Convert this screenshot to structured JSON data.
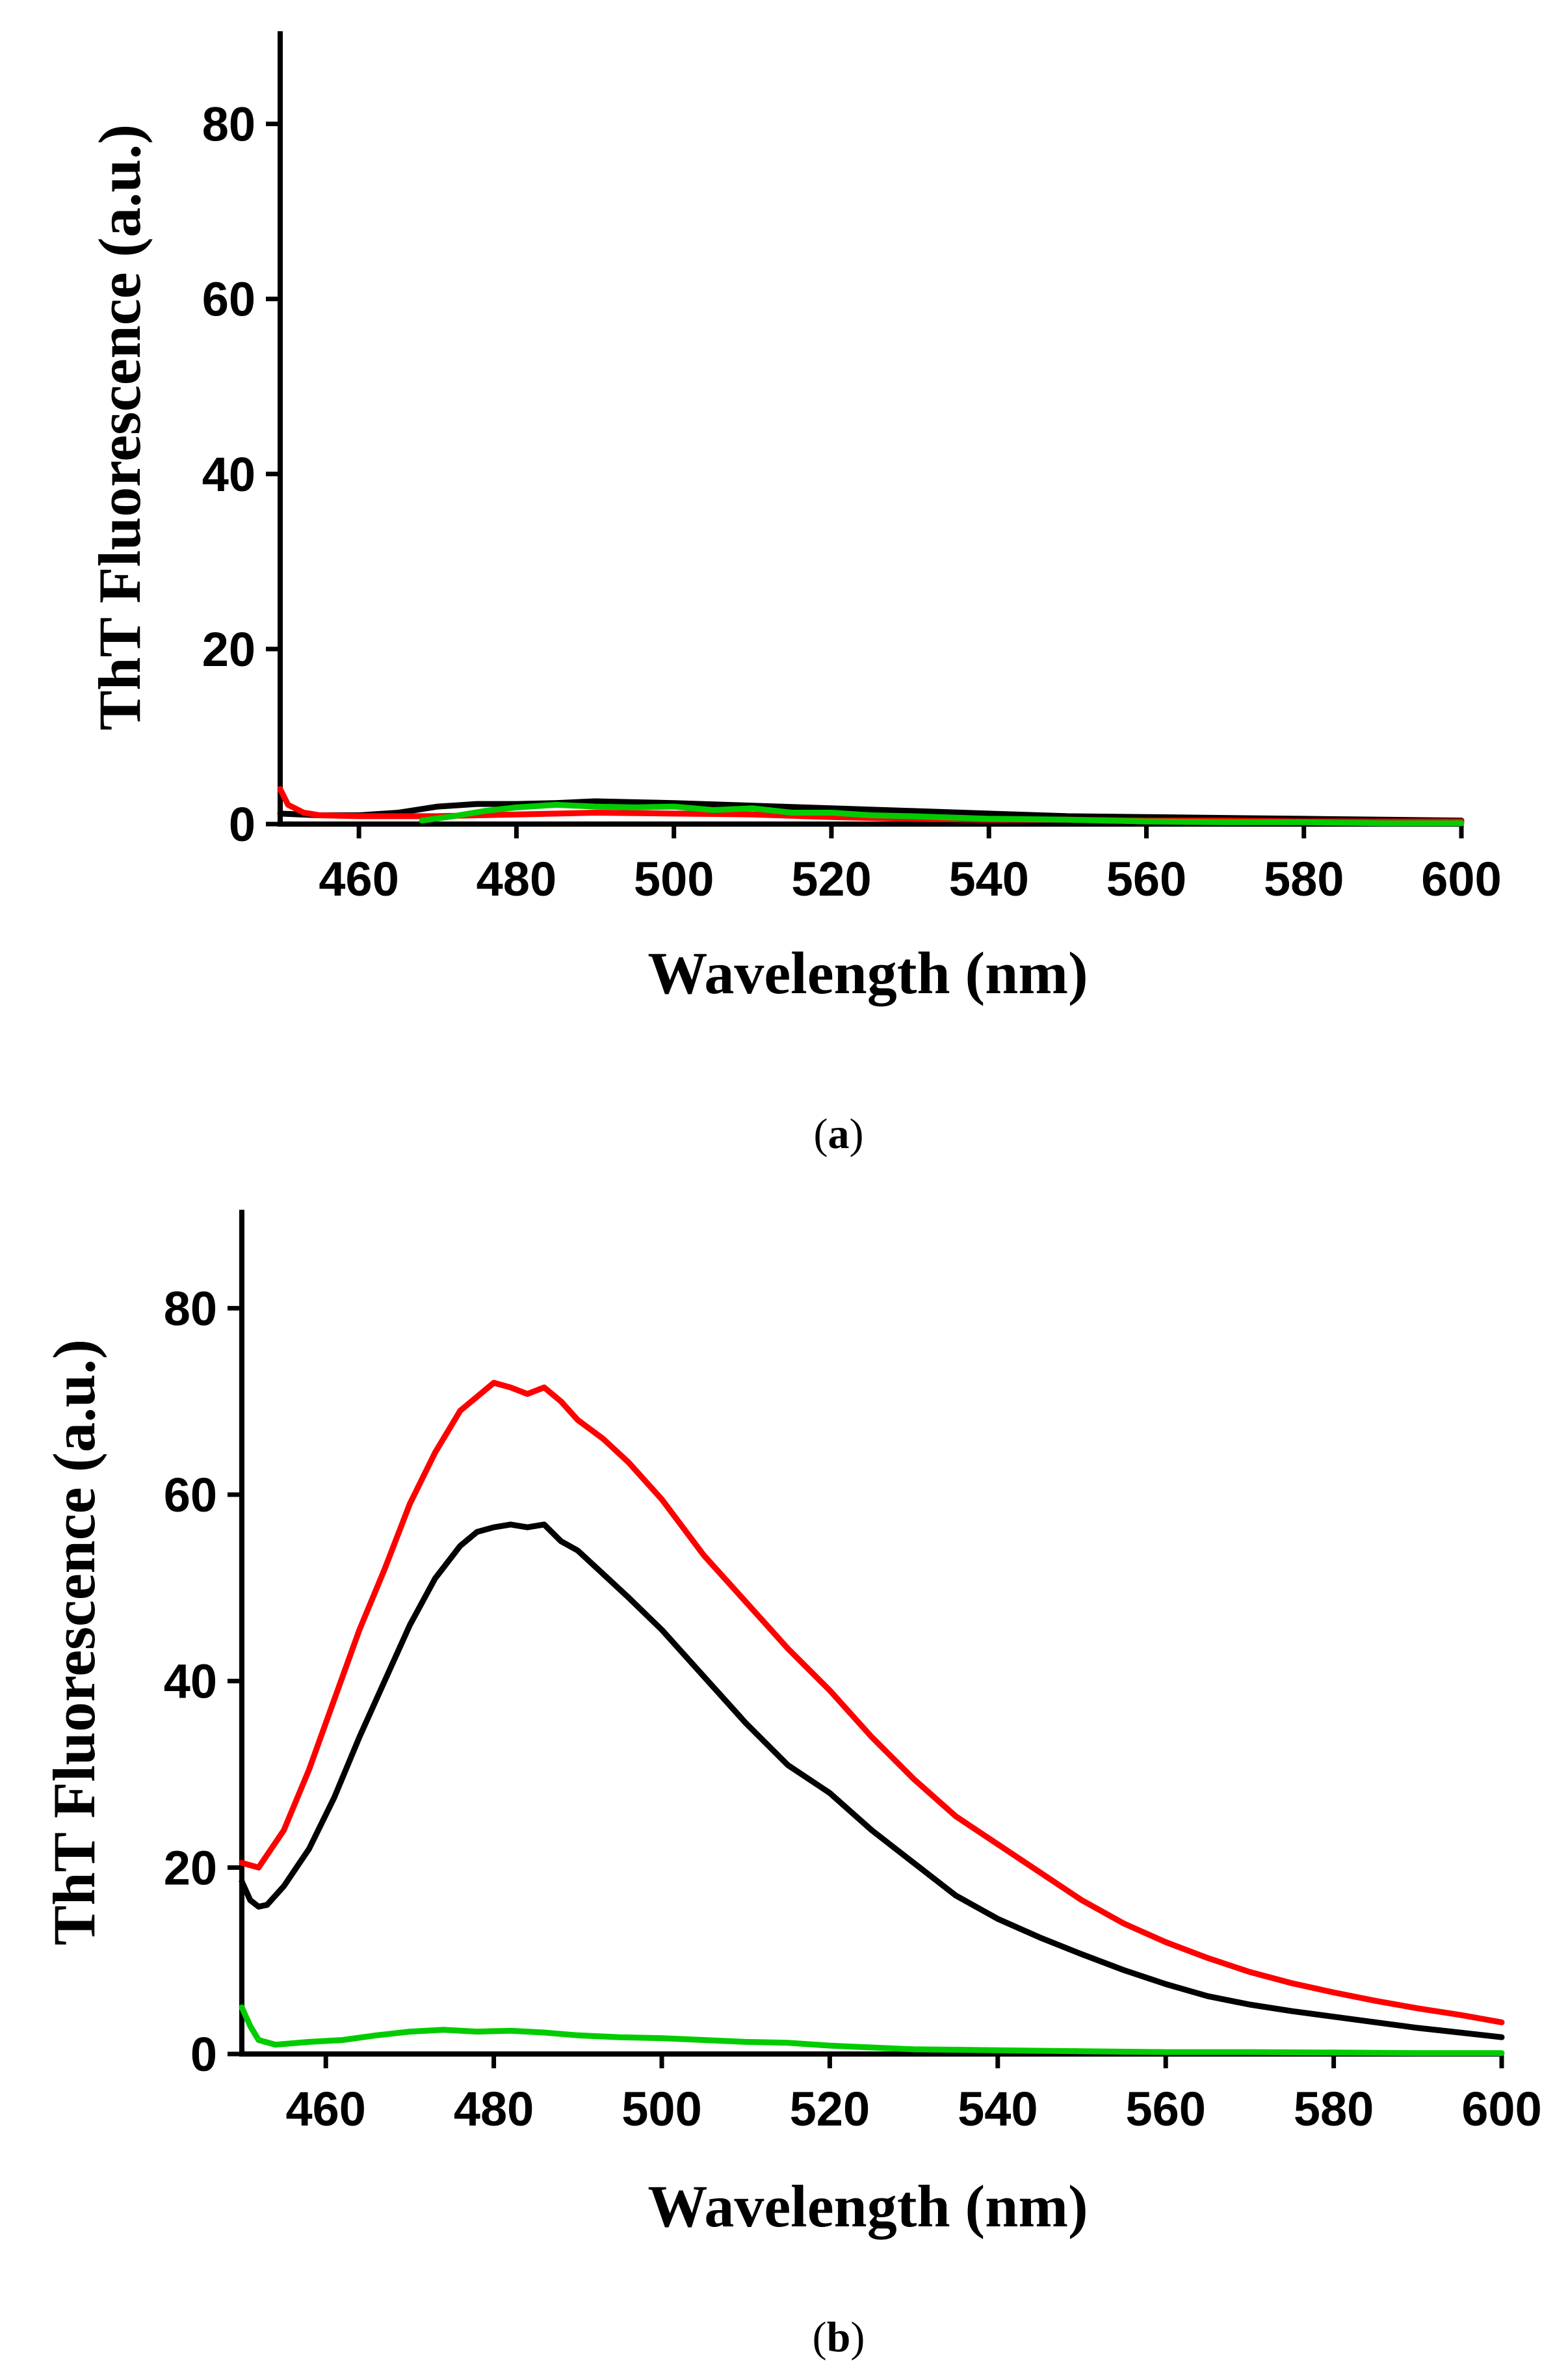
{
  "chart_data": [
    {
      "type": "line",
      "caption_open": "(",
      "caption_letter": "a",
      "caption_close": ")",
      "xlabel": "Wavelength (nm)",
      "ylabel": "ThT Fluorescence (a.u.)",
      "xlim": [
        450,
        600
      ],
      "ylim": [
        0,
        90
      ],
      "xticks": [
        460,
        480,
        500,
        520,
        540,
        560,
        580,
        600
      ],
      "yticks": [
        0,
        20,
        40,
        60,
        80
      ],
      "series": [
        {
          "name": "black",
          "color": "#000000",
          "x": [
            450,
            455,
            460,
            465,
            470,
            475,
            480,
            485,
            490,
            495,
            500,
            510,
            520,
            530,
            540,
            550,
            560,
            570,
            580,
            590,
            600
          ],
          "y": [
            1.2,
            1.0,
            1.0,
            1.3,
            2.0,
            2.3,
            2.3,
            2.4,
            2.6,
            2.5,
            2.4,
            2.1,
            1.8,
            1.5,
            1.2,
            0.9,
            0.8,
            0.7,
            0.6,
            0.5,
            0.4
          ]
        },
        {
          "name": "red",
          "color": "#ff0000",
          "x": [
            450,
            451,
            453,
            455,
            460,
            470,
            480,
            490,
            500,
            510,
            520,
            530,
            540,
            550,
            560,
            570,
            580,
            590,
            600
          ],
          "y": [
            4.0,
            2.2,
            1.3,
            1.0,
            0.9,
            0.9,
            1.1,
            1.3,
            1.2,
            1.1,
            0.8,
            0.6,
            0.5,
            0.5,
            0.4,
            0.4,
            0.3,
            0.3,
            0.3
          ]
        },
        {
          "name": "green",
          "color": "#00cc00",
          "x": [
            468,
            472,
            476,
            480,
            485,
            490,
            495,
            500,
            505,
            510,
            515,
            520,
            525,
            530,
            540,
            550,
            560,
            570,
            580,
            590,
            600
          ],
          "y": [
            0.4,
            0.9,
            1.5,
            1.9,
            2.2,
            2.0,
            1.9,
            2.0,
            1.6,
            1.8,
            1.3,
            1.3,
            1.0,
            0.9,
            0.6,
            0.5,
            0.3,
            0.2,
            0.2,
            0.1,
            0.1
          ]
        }
      ]
    },
    {
      "type": "line",
      "caption_open": "(",
      "caption_letter": "b",
      "caption_close": ")",
      "xlabel": "Wavelength (nm)",
      "ylabel": "ThT Fluorescence (a.u.)",
      "xlim": [
        450,
        600
      ],
      "ylim": [
        0,
        90
      ],
      "xticks": [
        460,
        480,
        500,
        520,
        540,
        560,
        580,
        600
      ],
      "yticks": [
        0,
        20,
        40,
        60,
        80
      ],
      "series": [
        {
          "name": "black",
          "color": "#000000",
          "x": [
            450,
            451,
            452,
            453,
            455,
            458,
            461,
            464,
            467,
            470,
            473,
            476,
            478,
            480,
            482,
            484,
            486,
            488,
            490,
            493,
            496,
            500,
            505,
            510,
            515,
            520,
            525,
            530,
            535,
            540,
            545,
            550,
            555,
            560,
            565,
            570,
            575,
            580,
            585,
            590,
            595,
            600
          ],
          "y": [
            18.5,
            16.5,
            15.8,
            16.0,
            18.0,
            22.0,
            27.5,
            34.0,
            40.0,
            46.0,
            51.0,
            54.5,
            56.0,
            56.5,
            56.8,
            56.5,
            56.8,
            55.0,
            54.0,
            51.5,
            49.0,
            45.5,
            40.5,
            35.5,
            31.0,
            28.0,
            24.0,
            20.5,
            17.0,
            14.5,
            12.5,
            10.7,
            9.0,
            7.5,
            6.2,
            5.3,
            4.6,
            4.0,
            3.4,
            2.8,
            2.3,
            1.8
          ]
        },
        {
          "name": "red",
          "color": "#ff0000",
          "x": [
            450,
            452,
            455,
            458,
            461,
            464,
            467,
            470,
            473,
            476,
            478,
            480,
            482,
            484,
            486,
            488,
            490,
            493,
            496,
            500,
            505,
            510,
            515,
            520,
            525,
            530,
            535,
            540,
            545,
            550,
            555,
            560,
            565,
            570,
            575,
            580,
            585,
            590,
            595,
            600
          ],
          "y": [
            20.5,
            20.0,
            24.0,
            30.5,
            38.0,
            45.5,
            52.0,
            59.0,
            64.5,
            69.0,
            70.5,
            72.0,
            71.5,
            70.8,
            71.5,
            70.0,
            68.0,
            66.0,
            63.5,
            59.5,
            53.5,
            48.5,
            43.5,
            39.0,
            34.0,
            29.5,
            25.5,
            22.5,
            19.5,
            16.5,
            14.0,
            12.0,
            10.3,
            8.8,
            7.6,
            6.6,
            5.7,
            4.9,
            4.2,
            3.4
          ]
        },
        {
          "name": "green",
          "color": "#00cc00",
          "x": [
            450,
            451,
            452,
            454,
            458,
            462,
            466,
            470,
            474,
            478,
            482,
            486,
            490,
            495,
            500,
            505,
            510,
            515,
            520,
            525,
            530,
            540,
            550,
            560,
            570,
            580,
            590,
            600
          ],
          "y": [
            5.0,
            3.0,
            1.5,
            1.0,
            1.3,
            1.5,
            2.0,
            2.4,
            2.6,
            2.4,
            2.5,
            2.3,
            2.0,
            1.8,
            1.7,
            1.5,
            1.3,
            1.2,
            0.9,
            0.7,
            0.5,
            0.4,
            0.3,
            0.2,
            0.2,
            0.15,
            0.1,
            0.1
          ]
        }
      ]
    }
  ]
}
